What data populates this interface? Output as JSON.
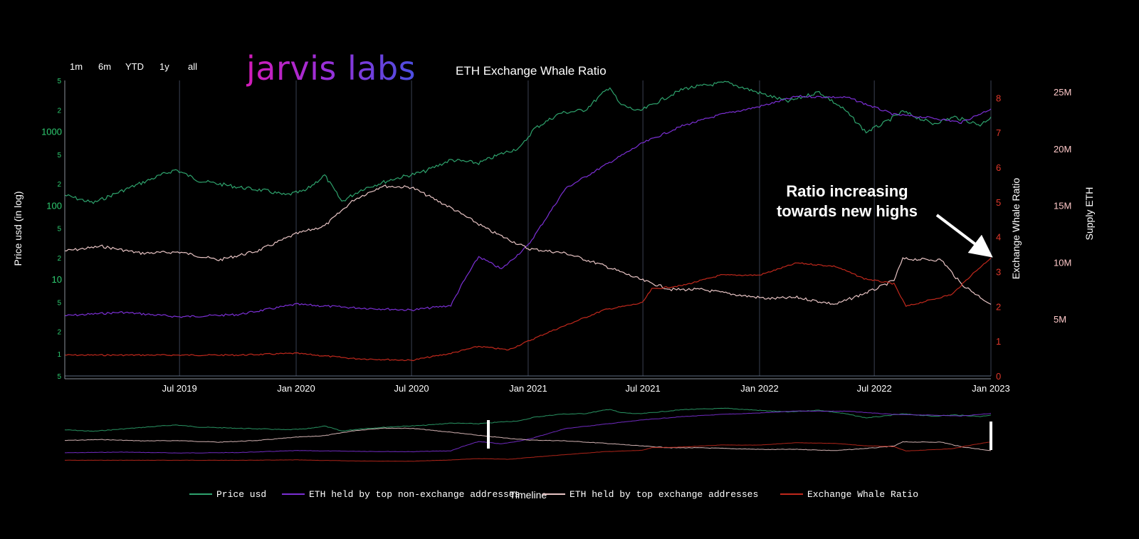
{
  "range_buttons": [
    "1m",
    "6m",
    "YTD",
    "1y",
    "all"
  ],
  "logo_text": "jarvis labs",
  "chart_data": {
    "type": "line",
    "title": "ETH Exchange Whale Ratio",
    "xlabel": "Timeline",
    "x_ticks": [
      "Jul 2019",
      "Jan 2020",
      "Jul 2020",
      "Jan 2021",
      "Jul 2021",
      "Jan 2022",
      "Jul 2022",
      "Jan 2023"
    ],
    "x_tick_dates": [
      "2019-07-01",
      "2020-01-01",
      "2020-07-01",
      "2021-01-01",
      "2021-07-01",
      "2022-01-01",
      "2022-07-01",
      "2023-01-01"
    ],
    "x_range": [
      "2019-01-01",
      "2023-01-01"
    ],
    "grid": true,
    "axes": {
      "price": {
        "label": "Price usd (in log)",
        "scale": "log",
        "range": [
          0.5,
          5000
        ],
        "tick_labels": [
          "5",
          "2",
          "1000",
          "5",
          "2",
          "100",
          "5",
          "2",
          "10",
          "5",
          "2",
          "1",
          "5"
        ],
        "tick_values": [
          5000,
          2000,
          1000,
          500,
          200,
          100,
          50,
          20,
          10,
          5,
          2,
          1,
          0.5
        ],
        "color": "#2ecc71"
      },
      "ratio": {
        "label": "Exchange Whale Ratio",
        "range": [
          0,
          8.5
        ],
        "tick_labels": [
          "0",
          "1",
          "2",
          "3",
          "4",
          "5",
          "6",
          "7",
          "8"
        ],
        "color": "#e0382b"
      },
      "supply": {
        "label": "Supply ETH",
        "range": [
          0,
          26000000
        ],
        "tick_labels": [
          "5M",
          "10M",
          "15M",
          "20M",
          "25M"
        ],
        "tick_values": [
          5000000,
          10000000,
          15000000,
          20000000,
          25000000
        ],
        "color": "#ffc9c9"
      }
    },
    "series": [
      {
        "name": "Price usd",
        "axis": "price",
        "color": "#2ea36d",
        "points": [
          [
            "2019-01-01",
            140
          ],
          [
            "2019-02-15",
            110
          ],
          [
            "2019-04-01",
            160
          ],
          [
            "2019-06-01",
            260
          ],
          [
            "2019-06-25",
            310
          ],
          [
            "2019-08-01",
            220
          ],
          [
            "2019-10-01",
            180
          ],
          [
            "2019-11-15",
            160
          ],
          [
            "2019-12-15",
            140
          ],
          [
            "2020-01-15",
            160
          ],
          [
            "2020-02-15",
            260
          ],
          [
            "2020-03-13",
            115
          ],
          [
            "2020-04-15",
            170
          ],
          [
            "2020-06-01",
            230
          ],
          [
            "2020-07-20",
            290
          ],
          [
            "2020-09-01",
            420
          ],
          [
            "2020-10-15",
            380
          ],
          [
            "2020-11-20",
            510
          ],
          [
            "2020-12-20",
            620
          ],
          [
            "2021-01-10",
            1100
          ],
          [
            "2021-02-20",
            1800
          ],
          [
            "2021-04-01",
            2000
          ],
          [
            "2021-05-10",
            4100
          ],
          [
            "2021-05-25",
            2400
          ],
          [
            "2021-06-25",
            1900
          ],
          [
            "2021-08-15",
            3200
          ],
          [
            "2021-09-05",
            3900
          ],
          [
            "2021-11-10",
            4700
          ],
          [
            "2022-01-10",
            3200
          ],
          [
            "2022-02-15",
            2600
          ],
          [
            "2022-04-05",
            3500
          ],
          [
            "2022-05-15",
            2000
          ],
          [
            "2022-06-18",
            1000
          ],
          [
            "2022-07-15",
            1300
          ],
          [
            "2022-08-15",
            1900
          ],
          [
            "2022-10-01",
            1300
          ],
          [
            "2022-11-05",
            1600
          ],
          [
            "2022-12-15",
            1250
          ],
          [
            "2023-01-01",
            1600
          ]
        ]
      },
      {
        "name": "ETH held by top non-exchange addresses",
        "axis": "supply",
        "color": "#7b2fd4",
        "points": [
          [
            "2019-01-01",
            5300000
          ],
          [
            "2019-04-01",
            5600000
          ],
          [
            "2019-07-01",
            5200000
          ],
          [
            "2019-10-01",
            5400000
          ],
          [
            "2020-01-01",
            6300000
          ],
          [
            "2020-04-01",
            6000000
          ],
          [
            "2020-07-01",
            5800000
          ],
          [
            "2020-09-01",
            6200000
          ],
          [
            "2020-09-20",
            8200000
          ],
          [
            "2020-10-15",
            10500000
          ],
          [
            "2020-11-20",
            9400000
          ],
          [
            "2021-01-01",
            11500000
          ],
          [
            "2021-03-01",
            16500000
          ],
          [
            "2021-05-01",
            18500000
          ],
          [
            "2021-07-01",
            20500000
          ],
          [
            "2021-09-01",
            22000000
          ],
          [
            "2021-11-01",
            23000000
          ],
          [
            "2022-01-01",
            23700000
          ],
          [
            "2022-03-01",
            24600000
          ],
          [
            "2022-05-20",
            24500000
          ],
          [
            "2022-08-01",
            23000000
          ],
          [
            "2022-10-01",
            22700000
          ],
          [
            "2022-11-15",
            22300000
          ],
          [
            "2023-01-01",
            23500000
          ]
        ]
      },
      {
        "name": "ETH held by top exchange addresses",
        "axis": "supply",
        "color": "#e8c4c4",
        "points": [
          [
            "2019-01-01",
            11000000
          ],
          [
            "2019-03-01",
            11400000
          ],
          [
            "2019-05-01",
            10800000
          ],
          [
            "2019-07-01",
            10900000
          ],
          [
            "2019-09-01",
            10200000
          ],
          [
            "2019-11-01",
            11000000
          ],
          [
            "2020-01-01",
            12500000
          ],
          [
            "2020-02-15",
            13200000
          ],
          [
            "2020-04-01",
            15500000
          ],
          [
            "2020-05-15",
            16700000
          ],
          [
            "2020-07-01",
            16600000
          ],
          [
            "2020-09-01",
            14800000
          ],
          [
            "2020-11-01",
            12800000
          ],
          [
            "2021-01-01",
            11200000
          ],
          [
            "2021-03-01",
            10800000
          ],
          [
            "2021-05-01",
            9700000
          ],
          [
            "2021-07-01",
            8400000
          ],
          [
            "2021-08-15",
            7600000
          ],
          [
            "2021-10-01",
            7600000
          ],
          [
            "2021-12-01",
            7100000
          ],
          [
            "2022-01-15",
            6800000
          ],
          [
            "2022-03-01",
            6900000
          ],
          [
            "2022-05-01",
            6300000
          ],
          [
            "2022-07-01",
            7600000
          ],
          [
            "2022-08-01",
            8400000
          ],
          [
            "2022-08-15",
            10300000
          ],
          [
            "2022-10-15",
            10200000
          ],
          [
            "2022-11-15",
            8100000
          ],
          [
            "2023-01-01",
            6300000
          ]
        ]
      },
      {
        "name": "Exchange Whale Ratio",
        "axis": "ratio",
        "color": "#c0281c",
        "points": [
          [
            "2019-01-01",
            0.6
          ],
          [
            "2019-06-01",
            0.6
          ],
          [
            "2019-10-01",
            0.6
          ],
          [
            "2020-01-01",
            0.65
          ],
          [
            "2020-04-01",
            0.5
          ],
          [
            "2020-07-01",
            0.45
          ],
          [
            "2020-09-01",
            0.65
          ],
          [
            "2020-10-15",
            0.85
          ],
          [
            "2020-12-01",
            0.75
          ],
          [
            "2021-02-01",
            1.25
          ],
          [
            "2021-05-01",
            1.9
          ],
          [
            "2021-06-30",
            2.1
          ],
          [
            "2021-07-15",
            2.5
          ],
          [
            "2021-09-01",
            2.6
          ],
          [
            "2021-11-01",
            2.9
          ],
          [
            "2022-01-01",
            2.9
          ],
          [
            "2022-03-01",
            3.25
          ],
          [
            "2022-05-01",
            3.15
          ],
          [
            "2022-06-15",
            2.8
          ],
          [
            "2022-08-01",
            2.65
          ],
          [
            "2022-08-20",
            2.0
          ],
          [
            "2022-11-01",
            2.35
          ],
          [
            "2022-12-01",
            2.9
          ],
          [
            "2023-01-01",
            3.4
          ]
        ]
      }
    ],
    "annotation": {
      "text_line1": "Ratio increasing",
      "text_line2": "towards new highs"
    },
    "legend_position": "bottom"
  }
}
